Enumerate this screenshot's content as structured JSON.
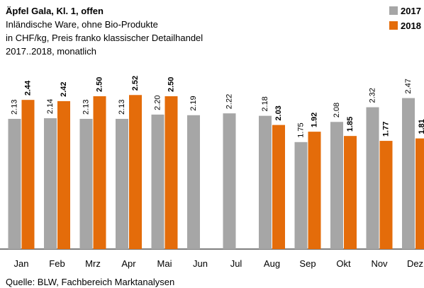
{
  "chart_data": {
    "type": "bar",
    "title": "Äpfel Gala, Kl. 1, offen",
    "subtitle": [
      "Inländische Ware, ohne Bio-Produkte",
      "in CHF/kg, Preis franko klassischer Detailhandel",
      "2017..2018, monatlich"
    ],
    "source": "Quelle: BLW, Fachbereich Marktanalysen",
    "categories": [
      "Jan",
      "Feb",
      "Mrz",
      "Apr",
      "Mai",
      "Jun",
      "Jul",
      "Aug",
      "Sep",
      "Okt",
      "Nov",
      "Dez"
    ],
    "series": [
      {
        "name": "2017",
        "color": "#a6a6a6",
        "values": [
          2.13,
          2.14,
          2.13,
          2.13,
          2.2,
          2.19,
          2.22,
          2.18,
          1.75,
          2.08,
          2.32,
          2.47
        ],
        "value_labels": [
          "2.13",
          "2.14",
          "2.13",
          "2.13",
          "2.20",
          "2.19",
          "2.22",
          "2.18",
          "1.75",
          "2.08",
          "2.32",
          "2.47"
        ]
      },
      {
        "name": "2018",
        "color": "#e46c0a",
        "values": [
          2.44,
          2.42,
          2.5,
          2.52,
          2.5,
          null,
          null,
          2.03,
          1.92,
          1.85,
          1.77,
          1.81
        ],
        "value_labels": [
          "2.44",
          "2.42",
          "2.50",
          "2.52",
          "2.50",
          null,
          null,
          "2.03",
          "1.92",
          "1.85",
          "1.77",
          "1.81"
        ]
      }
    ],
    "legend": "top-right"
  }
}
